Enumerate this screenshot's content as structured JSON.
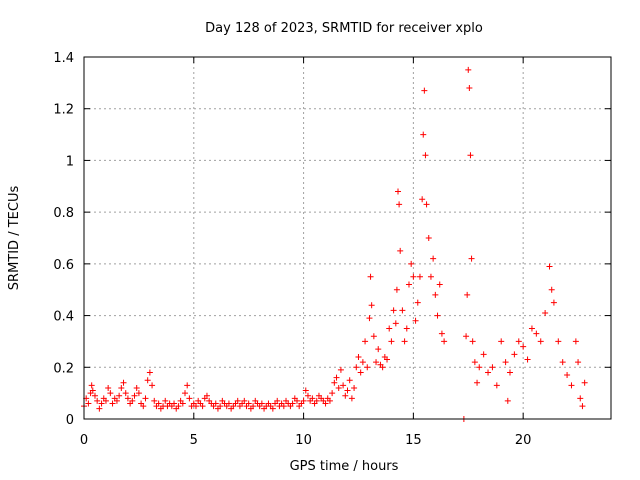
{
  "chart_data": {
    "type": "scatter",
    "title": "Day 128 of 2023, SRMTID for receiver xplo",
    "xlabel": "GPS time / hours",
    "ylabel": "SRMTID / TECUs",
    "xlim": [
      0,
      24
    ],
    "ylim": [
      0,
      1.4
    ],
    "grid": true,
    "marker": "+",
    "color": "#ff0000",
    "xticks": [
      0,
      5,
      10,
      15,
      20
    ],
    "xtick_labels": [
      "0",
      "5",
      "10",
      "15",
      "20"
    ],
    "yticks": [
      0,
      0.2,
      0.4,
      0.6,
      0.8,
      1.0,
      1.2,
      1.4
    ],
    "ytick_labels": [
      "0",
      "0.2",
      "0.4",
      "0.6",
      "0.8",
      "1",
      "1.2",
      "1.4"
    ],
    "series": [
      {
        "name": "SRMTID",
        "points": [
          [
            0.0,
            0.05
          ],
          [
            0.1,
            0.08
          ],
          [
            0.2,
            0.06
          ],
          [
            0.3,
            0.1
          ],
          [
            0.35,
            0.13
          ],
          [
            0.4,
            0.11
          ],
          [
            0.5,
            0.09
          ],
          [
            0.6,
            0.07
          ],
          [
            0.7,
            0.04
          ],
          [
            0.8,
            0.06
          ],
          [
            0.9,
            0.08
          ],
          [
            1.0,
            0.07
          ],
          [
            1.1,
            0.12
          ],
          [
            1.2,
            0.1
          ],
          [
            1.3,
            0.06
          ],
          [
            1.4,
            0.08
          ],
          [
            1.5,
            0.07
          ],
          [
            1.6,
            0.09
          ],
          [
            1.7,
            0.12
          ],
          [
            1.8,
            0.14
          ],
          [
            1.9,
            0.1
          ],
          [
            2.0,
            0.08
          ],
          [
            2.1,
            0.06
          ],
          [
            2.2,
            0.07
          ],
          [
            2.3,
            0.09
          ],
          [
            2.4,
            0.12
          ],
          [
            2.5,
            0.1
          ],
          [
            2.6,
            0.06
          ],
          [
            2.7,
            0.05
          ],
          [
            2.8,
            0.08
          ],
          [
            2.9,
            0.15
          ],
          [
            3.0,
            0.18
          ],
          [
            3.1,
            0.13
          ],
          [
            3.2,
            0.07
          ],
          [
            3.3,
            0.05
          ],
          [
            3.4,
            0.06
          ],
          [
            3.5,
            0.04
          ],
          [
            3.6,
            0.05
          ],
          [
            3.7,
            0.07
          ],
          [
            3.8,
            0.05
          ],
          [
            3.9,
            0.06
          ],
          [
            4.0,
            0.05
          ],
          [
            4.1,
            0.06
          ],
          [
            4.2,
            0.04
          ],
          [
            4.3,
            0.05
          ],
          [
            4.4,
            0.07
          ],
          [
            4.5,
            0.06
          ],
          [
            4.6,
            0.1
          ],
          [
            4.7,
            0.13
          ],
          [
            4.8,
            0.08
          ],
          [
            4.9,
            0.05
          ],
          [
            5.0,
            0.06
          ],
          [
            5.1,
            0.05
          ],
          [
            5.2,
            0.07
          ],
          [
            5.3,
            0.06
          ],
          [
            5.4,
            0.05
          ],
          [
            5.5,
            0.08
          ],
          [
            5.6,
            0.09
          ],
          [
            5.7,
            0.07
          ],
          [
            5.8,
            0.06
          ],
          [
            5.9,
            0.05
          ],
          [
            6.0,
            0.06
          ],
          [
            6.1,
            0.04
          ],
          [
            6.2,
            0.05
          ],
          [
            6.3,
            0.07
          ],
          [
            6.4,
            0.06
          ],
          [
            6.5,
            0.05
          ],
          [
            6.6,
            0.06
          ],
          [
            6.7,
            0.04
          ],
          [
            6.8,
            0.05
          ],
          [
            6.9,
            0.06
          ],
          [
            7.0,
            0.07
          ],
          [
            7.1,
            0.05
          ],
          [
            7.2,
            0.06
          ],
          [
            7.3,
            0.07
          ],
          [
            7.4,
            0.05
          ],
          [
            7.5,
            0.06
          ],
          [
            7.6,
            0.04
          ],
          [
            7.7,
            0.05
          ],
          [
            7.8,
            0.07
          ],
          [
            7.9,
            0.06
          ],
          [
            8.0,
            0.05
          ],
          [
            8.1,
            0.06
          ],
          [
            8.2,
            0.04
          ],
          [
            8.3,
            0.05
          ],
          [
            8.4,
            0.06
          ],
          [
            8.5,
            0.05
          ],
          [
            8.6,
            0.04
          ],
          [
            8.7,
            0.06
          ],
          [
            8.8,
            0.07
          ],
          [
            8.9,
            0.05
          ],
          [
            9.0,
            0.06
          ],
          [
            9.1,
            0.05
          ],
          [
            9.2,
            0.07
          ],
          [
            9.3,
            0.06
          ],
          [
            9.4,
            0.05
          ],
          [
            9.5,
            0.06
          ],
          [
            9.6,
            0.08
          ],
          [
            9.7,
            0.07
          ],
          [
            9.8,
            0.05
          ],
          [
            9.9,
            0.06
          ],
          [
            10.0,
            0.07
          ],
          [
            10.1,
            0.11
          ],
          [
            10.2,
            0.09
          ],
          [
            10.3,
            0.07
          ],
          [
            10.4,
            0.08
          ],
          [
            10.5,
            0.06
          ],
          [
            10.6,
            0.07
          ],
          [
            10.7,
            0.09
          ],
          [
            10.8,
            0.08
          ],
          [
            10.9,
            0.07
          ],
          [
            11.0,
            0.06
          ],
          [
            11.1,
            0.08
          ],
          [
            11.2,
            0.07
          ],
          [
            11.3,
            0.1
          ],
          [
            11.4,
            0.14
          ],
          [
            11.5,
            0.16
          ],
          [
            11.6,
            0.12
          ],
          [
            11.7,
            0.19
          ],
          [
            11.8,
            0.13
          ],
          [
            11.9,
            0.09
          ],
          [
            12.0,
            0.11
          ],
          [
            12.1,
            0.15
          ],
          [
            12.2,
            0.08
          ],
          [
            12.3,
            0.12
          ],
          [
            12.4,
            0.2
          ],
          [
            12.5,
            0.24
          ],
          [
            12.6,
            0.18
          ],
          [
            12.7,
            0.22
          ],
          [
            12.8,
            0.3
          ],
          [
            12.9,
            0.2
          ],
          [
            13.0,
            0.39
          ],
          [
            13.05,
            0.55
          ],
          [
            13.1,
            0.44
          ],
          [
            13.2,
            0.32
          ],
          [
            13.3,
            0.22
          ],
          [
            13.4,
            0.27
          ],
          [
            13.5,
            0.21
          ],
          [
            13.6,
            0.2
          ],
          [
            13.7,
            0.24
          ],
          [
            13.8,
            0.23
          ],
          [
            13.9,
            0.35
          ],
          [
            14.0,
            0.3
          ],
          [
            14.1,
            0.42
          ],
          [
            14.2,
            0.37
          ],
          [
            14.25,
            0.5
          ],
          [
            14.3,
            0.88
          ],
          [
            14.35,
            0.83
          ],
          [
            14.4,
            0.65
          ],
          [
            14.5,
            0.42
          ],
          [
            14.6,
            0.3
          ],
          [
            14.7,
            0.35
          ],
          [
            14.8,
            0.52
          ],
          [
            14.9,
            0.6
          ],
          [
            15.0,
            0.55
          ],
          [
            15.1,
            0.38
          ],
          [
            15.2,
            0.45
          ],
          [
            15.3,
            0.55
          ],
          [
            15.4,
            0.85
          ],
          [
            15.45,
            1.1
          ],
          [
            15.5,
            1.27
          ],
          [
            15.55,
            1.02
          ],
          [
            15.6,
            0.83
          ],
          [
            15.7,
            0.7
          ],
          [
            15.8,
            0.55
          ],
          [
            15.9,
            0.62
          ],
          [
            16.0,
            0.48
          ],
          [
            16.1,
            0.4
          ],
          [
            16.2,
            0.52
          ],
          [
            16.3,
            0.33
          ],
          [
            16.4,
            0.3
          ],
          [
            17.3,
            0.0
          ],
          [
            17.4,
            0.32
          ],
          [
            17.45,
            0.48
          ],
          [
            17.5,
            1.35
          ],
          [
            17.55,
            1.28
          ],
          [
            17.6,
            1.02
          ],
          [
            17.65,
            0.62
          ],
          [
            17.7,
            0.3
          ],
          [
            17.8,
            0.22
          ],
          [
            17.9,
            0.14
          ],
          [
            18.0,
            0.2
          ],
          [
            18.2,
            0.25
          ],
          [
            18.4,
            0.18
          ],
          [
            18.6,
            0.2
          ],
          [
            18.8,
            0.13
          ],
          [
            19.0,
            0.3
          ],
          [
            19.2,
            0.22
          ],
          [
            19.3,
            0.07
          ],
          [
            19.4,
            0.18
          ],
          [
            19.6,
            0.25
          ],
          [
            19.8,
            0.3
          ],
          [
            20.0,
            0.28
          ],
          [
            20.2,
            0.23
          ],
          [
            20.4,
            0.35
          ],
          [
            20.6,
            0.33
          ],
          [
            20.8,
            0.3
          ],
          [
            21.0,
            0.41
          ],
          [
            21.2,
            0.59
          ],
          [
            21.3,
            0.5
          ],
          [
            21.4,
            0.45
          ],
          [
            21.6,
            0.3
          ],
          [
            21.8,
            0.22
          ],
          [
            22.0,
            0.17
          ],
          [
            22.2,
            0.13
          ],
          [
            22.4,
            0.3
          ],
          [
            22.5,
            0.22
          ],
          [
            22.6,
            0.08
          ],
          [
            22.7,
            0.05
          ],
          [
            22.8,
            0.14
          ]
        ]
      }
    ]
  }
}
